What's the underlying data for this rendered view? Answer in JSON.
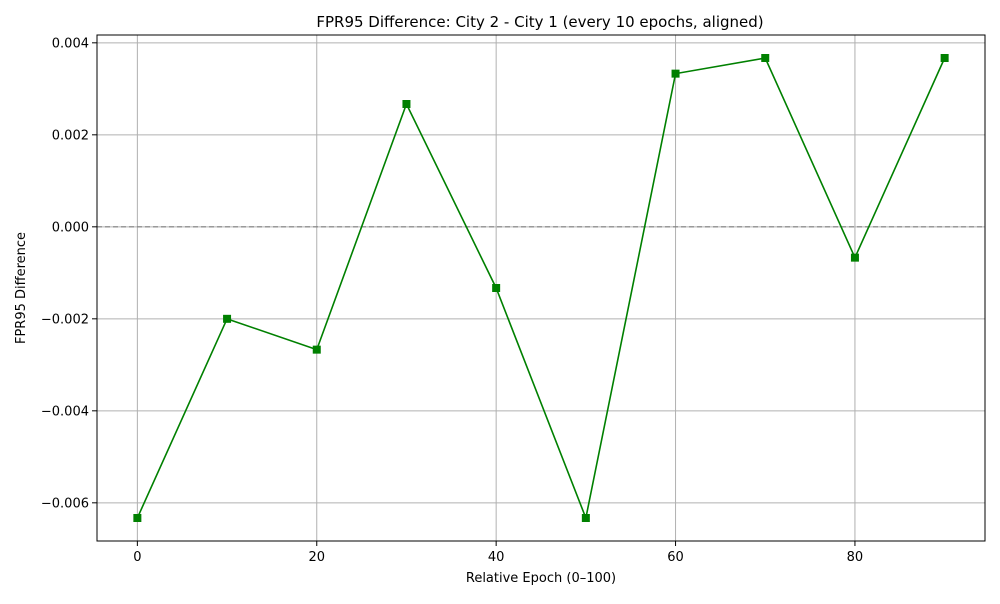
{
  "chart_data": {
    "type": "line",
    "title": "FPR95 Difference: City 2 - City 1 (every 10 epochs, aligned)",
    "xlabel": "Relative Epoch (0–100)",
    "ylabel": "FPR95 Difference",
    "x": [
      0,
      10,
      20,
      30,
      40,
      50,
      60,
      70,
      80,
      90
    ],
    "series": [
      {
        "values": [
          -0.00633,
          -0.002,
          -0.00267,
          0.00267,
          -0.00133,
          -0.00633,
          0.00333,
          0.00367,
          -0.00067,
          0.00367
        ],
        "color": "#008000",
        "marker": "square"
      }
    ],
    "xlim": [
      -4.5,
      94.5
    ],
    "ylim": [
      -0.00683,
      0.00417
    ],
    "x_ticks": [
      0,
      20,
      40,
      60,
      80
    ],
    "x_tick_labels": [
      "0",
      "20",
      "40",
      "60",
      "80"
    ],
    "y_ticks": [
      -0.006,
      -0.004,
      -0.002,
      0.0,
      0.002,
      0.004
    ],
    "y_tick_labels": [
      "−0.006",
      "−0.004",
      "−0.002",
      "0.000",
      "0.002",
      "0.004"
    ],
    "reference_line": {
      "y": 0,
      "style": "dashed",
      "color": "#808080"
    },
    "grid": true
  }
}
